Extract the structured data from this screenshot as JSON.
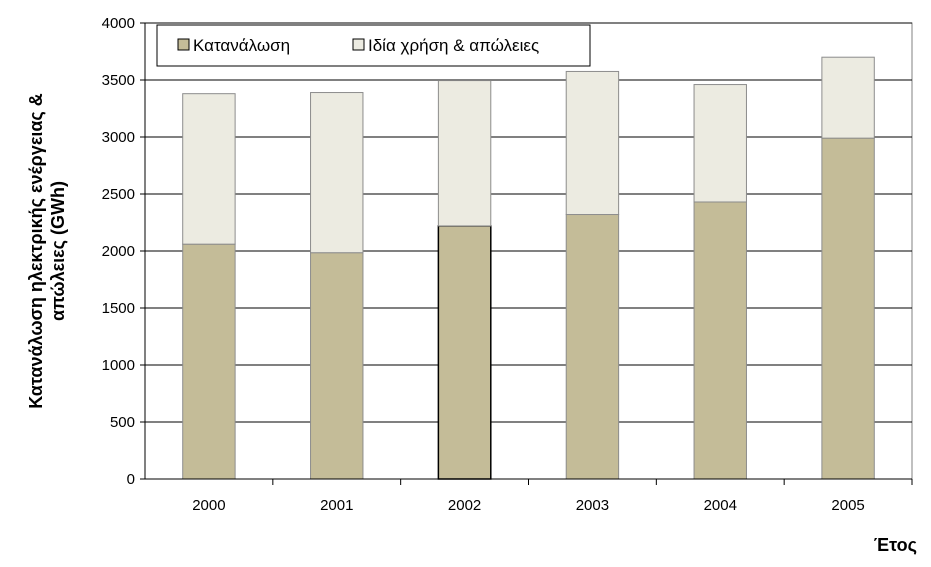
{
  "chart_data": {
    "type": "bar",
    "stacked": true,
    "categories": [
      "2000",
      "2001",
      "2002",
      "2003",
      "2004",
      "2005"
    ],
    "series": [
      {
        "name": "Κατανάλωση",
        "values": [
          2060,
          1985,
          2220,
          2320,
          2430,
          2990
        ],
        "color": "#c4bc98"
      },
      {
        "name": "Ιδία χρήση & απώλειες",
        "values": [
          1320,
          1405,
          1275,
          1255,
          1030,
          710
        ],
        "color": "#ecebe1"
      }
    ],
    "totals": [
      3380,
      3390,
      3495,
      3575,
      3460,
      3700
    ],
    "ylim": [
      0,
      4000
    ],
    "yticks": [
      "0",
      "500",
      "1000",
      "1500",
      "2000",
      "2500",
      "3000",
      "3500",
      "4000"
    ],
    "ylabel_line1": "Κατανάλωση ηλεκτρικής ενέργειας &",
    "ylabel_line2": "απώλειες (GWh)",
    "xlabel": "Έτος",
    "grid": true,
    "legend_position": "top-left"
  }
}
